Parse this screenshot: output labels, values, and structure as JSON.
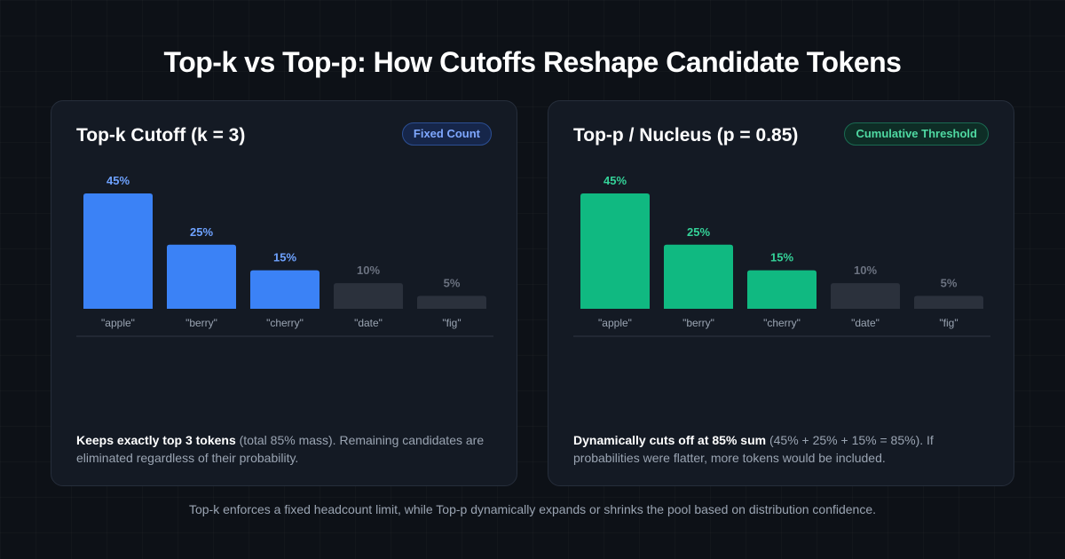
{
  "header": {
    "title": "Top-k vs Top-p: How Cutoffs Reshape Candidate Tokens"
  },
  "colors": {
    "topk_accent": "#3b82f6",
    "topp_accent": "#10b981",
    "excluded": "#2b313c"
  },
  "chart_data": [
    {
      "type": "bar",
      "title": "Top-k Cutoff (k = 3)",
      "badge": "Fixed Count",
      "categories": [
        "\"apple\"",
        "\"berry\"",
        "\"cherry\"",
        "\"date\"",
        "\"fig\""
      ],
      "values": [
        45,
        25,
        15,
        10,
        5
      ],
      "value_labels": [
        "45%",
        "25%",
        "15%",
        "10%",
        "5%"
      ],
      "selected": [
        true,
        true,
        true,
        false,
        false
      ],
      "ylim": [
        0,
        45
      ],
      "grid": false,
      "legend": "none",
      "accent_color": "#3b82f6",
      "description_bold": "Keeps exactly top 3 tokens",
      "description_rest": " (total 85% mass). Remaining candidates are eliminated regardless of their probability."
    },
    {
      "type": "bar",
      "title": "Top-p / Nucleus (p = 0.85)",
      "badge": "Cumulative Threshold",
      "categories": [
        "\"apple\"",
        "\"berry\"",
        "\"cherry\"",
        "\"date\"",
        "\"fig\""
      ],
      "values": [
        45,
        25,
        15,
        10,
        5
      ],
      "value_labels": [
        "45%",
        "25%",
        "15%",
        "10%",
        "5%"
      ],
      "selected": [
        true,
        true,
        true,
        false,
        false
      ],
      "ylim": [
        0,
        45
      ],
      "grid": false,
      "legend": "none",
      "accent_color": "#10b981",
      "description_bold": "Dynamically cuts off at 85% sum",
      "description_rest": " (45% + 25% + 15% = 85%). If probabilities were flatter, more tokens would be included."
    }
  ],
  "footer": {
    "text": "Top-k enforces a fixed headcount limit, while Top-p dynamically expands or shrinks the pool based on distribution confidence."
  }
}
